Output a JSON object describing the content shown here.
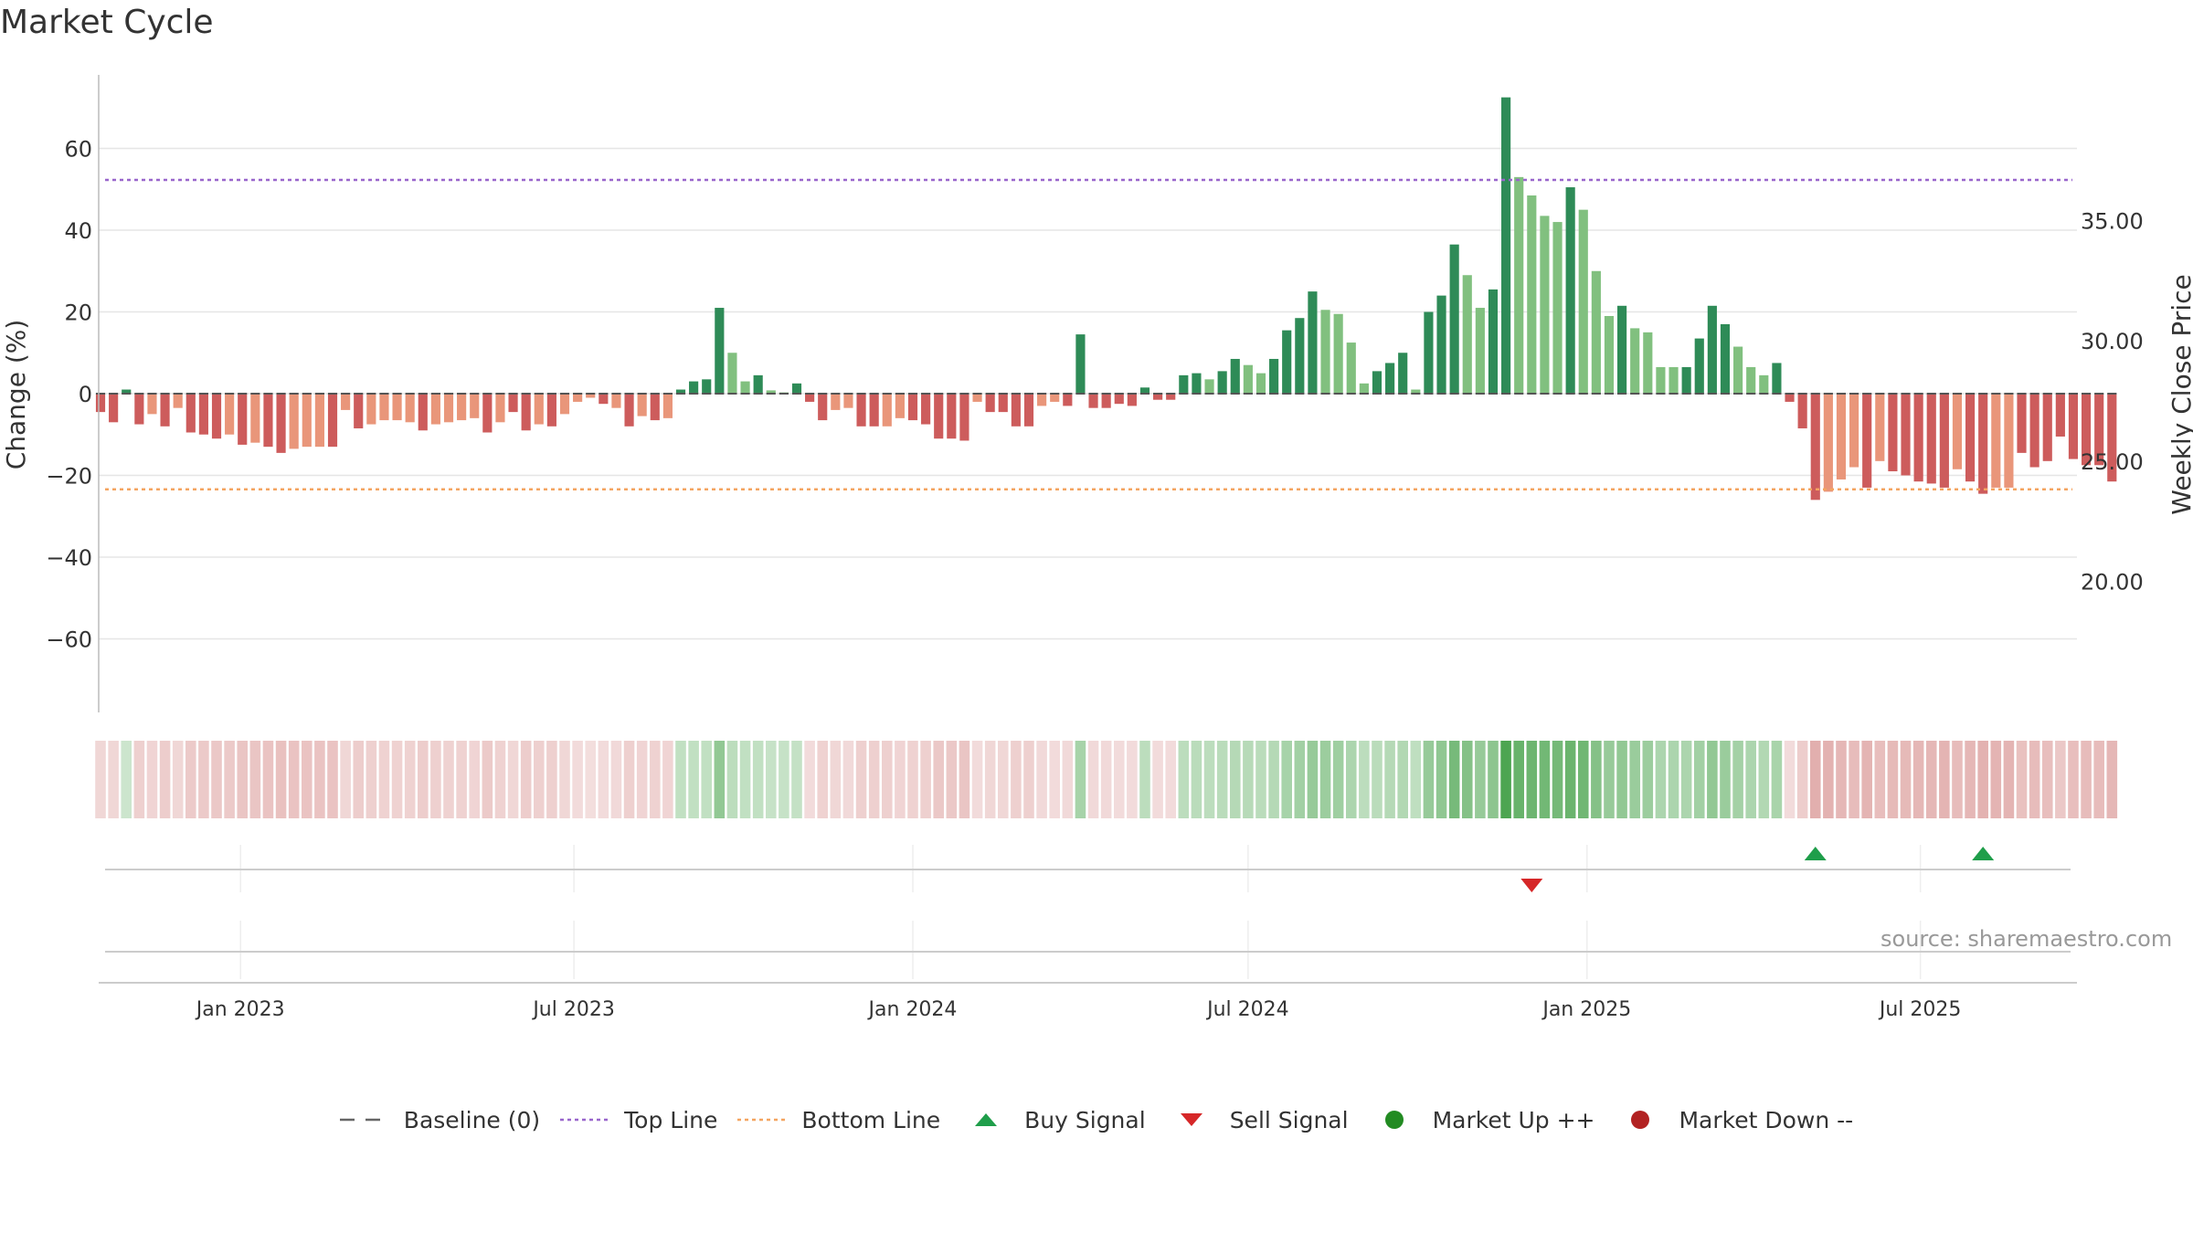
{
  "chart_data": {
    "type": "bar",
    "title": "Market Cycle",
    "source": "source: sharemaestro.com",
    "ylabel_left": "Change (%)",
    "ylabel_right": "Weekly Close Price",
    "ylim_left": [
      -78,
      78
    ],
    "yticks_left": [
      60,
      40,
      20,
      0,
      -20,
      -40,
      -60
    ],
    "yticks_left_labels": [
      "60",
      "40",
      "20",
      "0",
      "−20",
      "−40",
      "−60"
    ],
    "ylim_right": [
      14.55,
      41.05
    ],
    "yticks_right": [
      "35.00",
      "30.00",
      "25.00",
      "20.00"
    ],
    "xticks": [
      "Jan 2023",
      "Jul 2023",
      "Jan 2024",
      "Jul 2024",
      "Jan 2025",
      "Jul 2025"
    ],
    "x_range": [
      "2022-10-16",
      "2025-09-24"
    ],
    "first_week": "2022-10-17",
    "top_line": 52.3,
    "bottom_line": -23.4,
    "grid": true,
    "legend_position": "bottom",
    "colors": {
      "up_strong": "#2e8b57",
      "up_light": "#81c07f",
      "down_strong": "#cd5c5c",
      "down_light": "#e9967a",
      "top_line": "#9966cc",
      "bottom_line": "#f4a460",
      "buy": "#1f9e4a",
      "sell": "#d62728",
      "market_up": "#228b22",
      "market_down": "#b22222",
      "heat_up": "#43a047",
      "heat_down": "#c0504d"
    },
    "series": [
      {
        "name": "Weekly change",
        "values": [
          -4.5,
          -7.0,
          1.0,
          -7.5,
          -5.0,
          -8.0,
          -3.5,
          -9.5,
          -10.0,
          -11.0,
          -10.0,
          -12.5,
          -12.0,
          -13.0,
          -14.5,
          -13.5,
          -13.0,
          -13.0,
          -13.0,
          -4.0,
          -8.5,
          -7.5,
          -6.5,
          -6.5,
          -7.0,
          -9.0,
          -7.5,
          -7.0,
          -6.5,
          -6.0,
          -9.5,
          -7.0,
          -4.5,
          -9.0,
          -7.5,
          -8.0,
          -5.0,
          -2.0,
          -1.0,
          -2.5,
          -3.5,
          -8.0,
          -5.5,
          -6.5,
          -6.0,
          1.0,
          3.0,
          3.5,
          21.0,
          10.0,
          3.0,
          4.5,
          0.8,
          0.3,
          2.5,
          -2.0,
          -6.5,
          -4.0,
          -3.5,
          -8.0,
          -8.0,
          -8.0,
          -6.0,
          -6.5,
          -7.5,
          -11.0,
          -11.0,
          -11.5,
          -2.0,
          -4.5,
          -4.5,
          -8.0,
          -8.0,
          -3.0,
          -2.0,
          -3.0,
          14.5,
          -3.5,
          -3.5,
          -2.5,
          -3.0,
          1.5,
          -1.5,
          -1.5,
          4.5,
          5.0,
          3.5,
          5.5,
          8.5,
          7.0,
          5.0,
          8.5,
          15.5,
          18.5,
          25.0,
          20.5,
          19.5,
          12.5,
          2.5,
          5.5,
          7.5,
          10.0,
          1.0,
          20.0,
          24.0,
          36.5,
          29.0,
          21.0,
          25.5,
          72.5,
          53.0,
          48.5,
          43.5,
          42.0,
          50.5,
          45.0,
          30.0,
          19.0,
          21.5,
          16.0,
          15.0,
          6.5,
          6.5,
          6.5,
          13.5,
          21.5,
          17.0,
          11.5,
          6.5,
          4.5,
          7.5,
          -2.0,
          -8.5,
          -26.0,
          -24.0,
          -21.0,
          -18.0,
          -23.0,
          -16.5,
          -19.0,
          -20.0,
          -21.5,
          -22.0,
          -23.0,
          -18.5,
          -21.5,
          -24.5,
          -23.0,
          -23.0,
          -14.5,
          -18.0,
          -16.5,
          -10.5,
          -16.0,
          -17.5,
          -17.5,
          -21.5
        ],
        "tone": [
          0,
          0,
          0,
          0,
          1,
          0,
          1,
          0,
          0,
          0,
          1,
          0,
          1,
          0,
          0,
          1,
          1,
          1,
          0,
          1,
          0,
          1,
          1,
          1,
          1,
          0,
          1,
          1,
          1,
          1,
          0,
          1,
          0,
          0,
          1,
          0,
          1,
          1,
          1,
          0,
          1,
          0,
          1,
          0,
          1,
          0,
          0,
          0,
          0,
          1,
          1,
          0,
          1,
          1,
          0,
          0,
          0,
          1,
          1,
          0,
          0,
          1,
          1,
          0,
          0,
          0,
          0,
          0,
          1,
          0,
          0,
          0,
          0,
          1,
          1,
          0,
          0,
          0,
          0,
          0,
          0,
          0,
          0,
          0,
          0,
          0,
          1,
          0,
          0,
          1,
          1,
          0,
          0,
          0,
          0,
          1,
          1,
          1,
          1,
          0,
          0,
          0,
          1,
          0,
          0,
          0,
          1,
          1,
          0,
          0,
          1,
          1,
          1,
          1,
          0,
          1,
          1,
          1,
          0,
          1,
          1,
          1,
          1,
          0,
          0,
          0,
          0,
          1,
          1,
          1,
          0,
          0,
          0,
          0,
          1,
          1,
          1,
          0,
          1,
          0,
          0,
          0,
          0,
          0,
          1,
          0,
          0,
          1,
          1,
          0,
          0,
          0,
          0,
          0,
          0
        ]
      }
    ],
    "heatmap": {
      "values": [
        -5,
        -5,
        8,
        -8,
        -6,
        -9,
        -5,
        -10,
        -10,
        -11,
        -10,
        -12,
        -12,
        -13,
        -14,
        -13,
        -13,
        -13,
        -13,
        -5,
        -9,
        -8,
        -7,
        -7,
        -7,
        -9,
        -8,
        -7,
        -7,
        -6,
        -10,
        -7,
        -5,
        -9,
        -8,
        -8,
        -5,
        -3,
        -2,
        -3,
        -4,
        -8,
        -6,
        -7,
        -6,
        12,
        12,
        12,
        30,
        14,
        12,
        12,
        10,
        10,
        11,
        -3,
        -7,
        -5,
        -4,
        -8,
        -8,
        -8,
        -6,
        -7,
        -8,
        -11,
        -11,
        -12,
        -3,
        -5,
        -5,
        -8,
        -8,
        -4,
        -3,
        -4,
        22,
        -4,
        -4,
        -3,
        -3,
        14,
        -3,
        -3,
        14,
        15,
        14,
        15,
        17,
        16,
        15,
        17,
        22,
        24,
        28,
        26,
        25,
        20,
        14,
        15,
        17,
        18,
        13,
        28,
        31,
        40,
        35,
        28,
        32,
        56,
        46,
        44,
        42,
        41,
        45,
        43,
        35,
        28,
        30,
        27,
        26,
        20,
        20,
        20,
        24,
        30,
        27,
        23,
        20,
        18,
        21,
        -3,
        -9,
        -21,
        -20,
        -18,
        -16,
        -19,
        -15,
        -17,
        -17,
        -18,
        -18,
        -19,
        -16,
        -18,
        -20,
        -19,
        -19,
        -14,
        -16,
        -15,
        -11,
        -15,
        -16,
        -16,
        -18
      ]
    },
    "signals": [
      {
        "type": "sell",
        "week": 111
      },
      {
        "type": "buy",
        "week": 133
      },
      {
        "type": "buy",
        "week": 146
      }
    ],
    "legend": [
      {
        "label": "Baseline (0)",
        "kind": "dash",
        "color": "#666666"
      },
      {
        "label": "Top Line",
        "kind": "dot",
        "color": "#9966cc"
      },
      {
        "label": "Bottom Line",
        "kind": "dot",
        "color": "#f4a460"
      },
      {
        "label": "Buy Signal",
        "kind": "tri-up",
        "color": "#1f9e4a"
      },
      {
        "label": "Sell Signal",
        "kind": "tri-down",
        "color": "#d62728"
      },
      {
        "label": "Market Up ++",
        "kind": "circle",
        "color": "#228b22"
      },
      {
        "label": "Market Down --",
        "kind": "circle",
        "color": "#b22222"
      }
    ]
  }
}
